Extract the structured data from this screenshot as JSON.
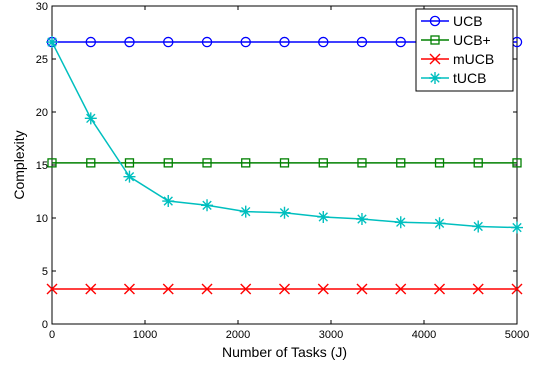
{
  "chart_data": {
    "type": "line",
    "xlabel": "Number of Tasks (J)",
    "ylabel": "Complexity",
    "xlim": [
      0,
      5000
    ],
    "ylim": [
      0,
      30
    ],
    "xticks": [
      0,
      1000,
      2000,
      3000,
      4000,
      5000
    ],
    "yticks": [
      0,
      5,
      10,
      15,
      20,
      25,
      30
    ],
    "grid": false,
    "legend_position": "top-right",
    "x": [
      0,
      417,
      833,
      1250,
      1667,
      2083,
      2500,
      2917,
      3333,
      3750,
      4167,
      4583,
      5000
    ],
    "series": [
      {
        "name": "UCB",
        "color": "#0000ff",
        "marker": "circle",
        "values": [
          26.6,
          26.6,
          26.6,
          26.6,
          26.6,
          26.6,
          26.6,
          26.6,
          26.6,
          26.6,
          26.6,
          26.6,
          26.6
        ]
      },
      {
        "name": "UCB+",
        "color": "#008000",
        "marker": "square",
        "values": [
          15.2,
          15.2,
          15.2,
          15.2,
          15.2,
          15.2,
          15.2,
          15.2,
          15.2,
          15.2,
          15.2,
          15.2,
          15.2
        ]
      },
      {
        "name": "mUCB",
        "color": "#ff0000",
        "marker": "x",
        "values": [
          3.3,
          3.3,
          3.3,
          3.3,
          3.3,
          3.3,
          3.3,
          3.3,
          3.3,
          3.3,
          3.3,
          3.3,
          3.3
        ]
      },
      {
        "name": "tUCB",
        "color": "#00bfbf",
        "marker": "star",
        "values": [
          26.6,
          19.4,
          13.9,
          11.6,
          11.2,
          10.6,
          10.5,
          10.1,
          9.9,
          9.6,
          9.5,
          9.2,
          9.1
        ]
      }
    ]
  }
}
